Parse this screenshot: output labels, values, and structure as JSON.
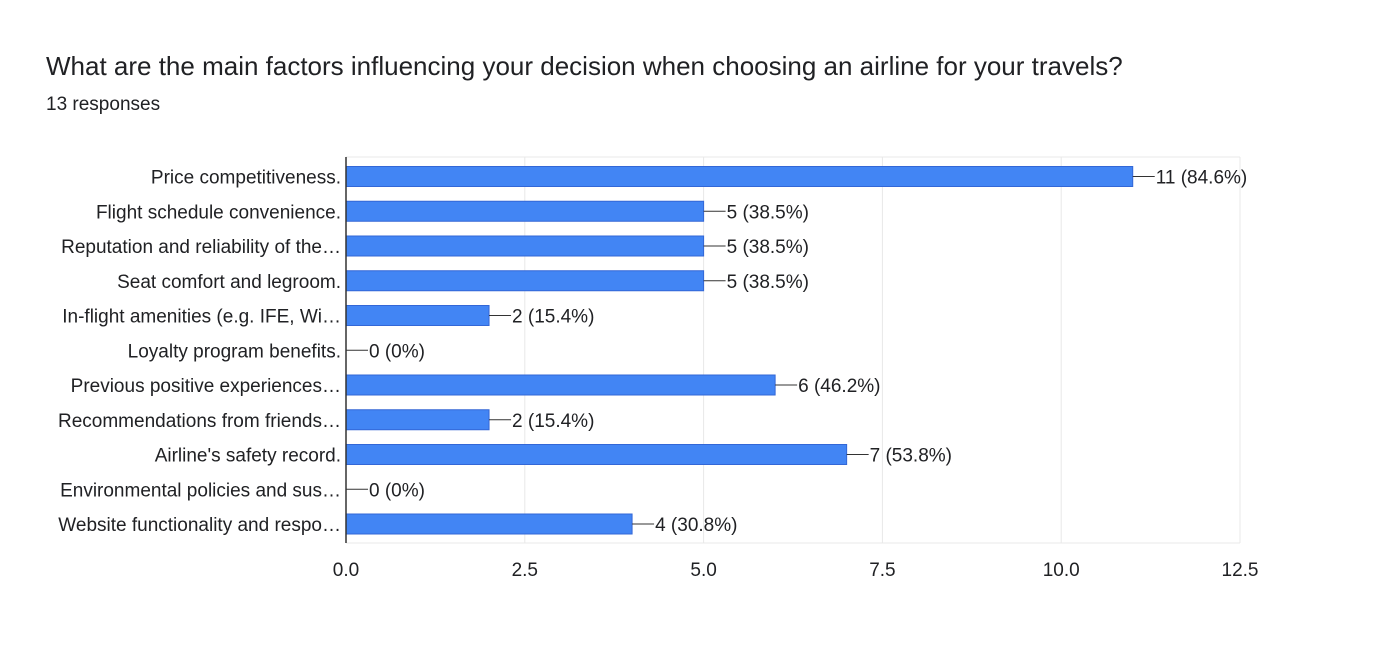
{
  "question": {
    "title": "What are the main factors influencing your decision when choosing an airline for your travels?",
    "responses": "13 responses"
  },
  "colors": {
    "bar": "#4285f4",
    "text": "#202124",
    "grid": "#e8e8e8",
    "axis": "#333333"
  },
  "chart_data": {
    "type": "bar",
    "orientation": "horizontal",
    "title": "What are the main factors influencing your decision when choosing an airline for your travels?",
    "subtitle": "13 responses",
    "categories": [
      "Price competitiveness.",
      "Flight schedule convenience.",
      "Reputation and reliability of the…",
      "Seat comfort and legroom.",
      "In-flight amenities (e.g. IFE, Wi…",
      "Loyalty program benefits.",
      "Previous positive experiences…",
      "Recommendations from friends…",
      "Airline's safety record.",
      "Environmental policies and sus…",
      "Website functionality and respo…"
    ],
    "values": [
      11,
      5,
      5,
      5,
      2,
      0,
      6,
      2,
      7,
      0,
      4
    ],
    "data_labels": [
      "11 (84.6%)",
      "5 (38.5%)",
      "5 (38.5%)",
      "5 (38.5%)",
      "2 (15.4%)",
      "0 (0%)",
      "6 (46.2%)",
      "2 (15.4%)",
      "7 (53.8%)",
      "0 (0%)",
      "4 (30.8%)"
    ],
    "xlim": [
      0,
      12.5
    ],
    "xticks": [
      0,
      2.5,
      5,
      7.5,
      10,
      12.5
    ],
    "xtick_labels": [
      "0.0",
      "2.5",
      "5.0",
      "7.5",
      "10.0",
      "12.5"
    ],
    "xlabel": "",
    "ylabel": "",
    "grid": true,
    "legend": "none"
  }
}
